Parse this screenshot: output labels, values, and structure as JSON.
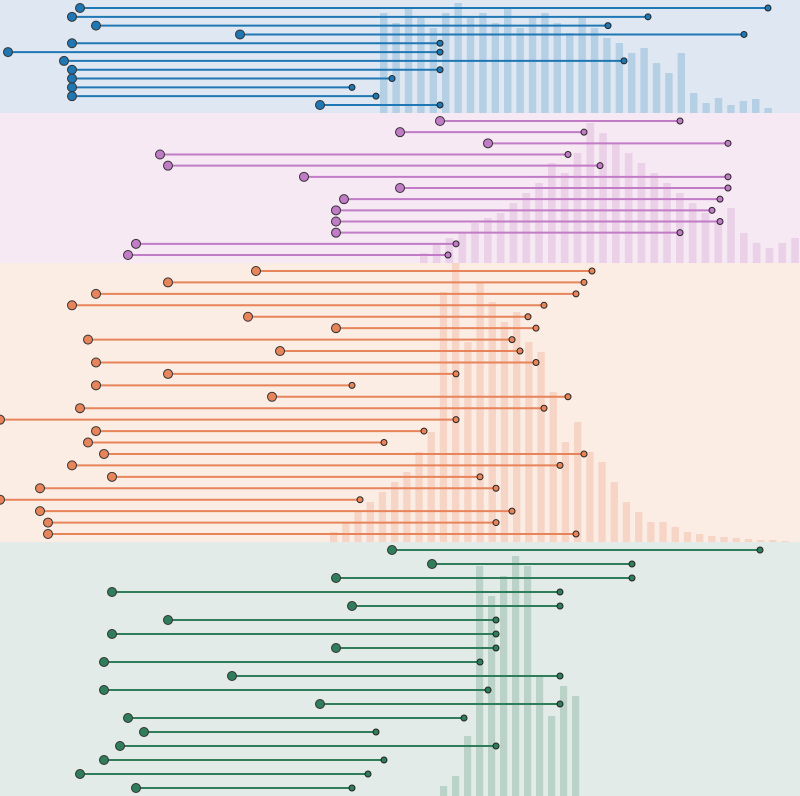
{
  "chart_data": {
    "type": "lineage",
    "xlim": [
      0,
      100
    ],
    "panels": [
      {
        "color": "#1f77b4",
        "background": "#dfe8f2",
        "bars": [
          100,
          90,
          105,
          95,
          85,
          100,
          110,
          95,
          100,
          90,
          105,
          85,
          95,
          100,
          90,
          80,
          95,
          85,
          75,
          70,
          60,
          65,
          50,
          40,
          60,
          20,
          10,
          15,
          8,
          12,
          14,
          5
        ],
        "lineages": [
          [
            10,
            96
          ],
          [
            9,
            81
          ],
          [
            12,
            76
          ],
          [
            30,
            93
          ],
          [
            9,
            55
          ],
          [
            1,
            55
          ],
          [
            8,
            78
          ],
          [
            9,
            55
          ],
          [
            9,
            49
          ],
          [
            9,
            44
          ],
          [
            9,
            47
          ],
          [
            40,
            55
          ]
        ]
      },
      {
        "color": "#c27bc6",
        "background": "#f6e9f3",
        "bars": [
          10,
          20,
          25,
          30,
          40,
          45,
          50,
          60,
          70,
          80,
          100,
          90,
          110,
          140,
          130,
          120,
          110,
          100,
          90,
          80,
          70,
          60,
          50,
          40,
          55,
          30,
          20,
          15,
          20,
          25
        ],
        "lineages": [
          [
            55,
            85
          ],
          [
            50,
            73
          ],
          [
            61,
            91
          ],
          [
            20,
            71
          ],
          [
            21,
            75
          ],
          [
            38,
            91
          ],
          [
            50,
            91
          ],
          [
            43,
            90
          ],
          [
            42,
            89
          ],
          [
            42,
            90
          ],
          [
            42,
            85
          ],
          [
            17,
            57
          ],
          [
            16,
            56
          ]
        ]
      },
      {
        "color": "#e8845a",
        "background": "#fbece4",
        "bars": [
          10,
          20,
          30,
          40,
          50,
          60,
          70,
          90,
          110,
          250,
          280,
          200,
          260,
          240,
          220,
          230,
          200,
          190,
          150,
          100,
          120,
          90,
          80,
          60,
          40,
          30,
          20,
          20,
          15,
          10,
          8,
          6,
          5,
          4,
          3,
          2,
          2,
          1
        ],
        "lineages": [
          [
            32,
            74
          ],
          [
            21,
            73
          ],
          [
            12,
            72
          ],
          [
            9,
            68
          ],
          [
            31,
            66
          ],
          [
            42,
            67
          ],
          [
            11,
            64
          ],
          [
            35,
            65
          ],
          [
            12,
            67
          ],
          [
            21,
            57
          ],
          [
            12,
            44
          ],
          [
            34,
            71
          ],
          [
            10,
            68
          ],
          [
            0,
            57
          ],
          [
            12,
            53
          ],
          [
            11,
            48
          ],
          [
            13,
            73
          ],
          [
            9,
            70
          ],
          [
            14,
            60
          ],
          [
            5,
            62
          ],
          [
            0,
            45
          ],
          [
            5,
            64
          ],
          [
            6,
            62
          ],
          [
            6,
            72
          ]
        ]
      },
      {
        "color": "#2f7d5a",
        "background": "#e2ebe7",
        "bars": [
          10,
          20,
          60,
          230,
          200,
          220,
          240,
          230,
          120,
          80,
          110,
          100
        ],
        "lineages": [
          [
            49,
            95
          ],
          [
            54,
            79
          ],
          [
            42,
            79
          ],
          [
            14,
            70
          ],
          [
            44,
            70
          ],
          [
            21,
            62
          ],
          [
            14,
            62
          ],
          [
            42,
            62
          ],
          [
            13,
            60
          ],
          [
            29,
            70
          ],
          [
            13,
            61
          ],
          [
            40,
            70
          ],
          [
            16,
            58
          ],
          [
            18,
            47
          ],
          [
            15,
            62
          ],
          [
            13,
            48
          ],
          [
            10,
            46
          ],
          [
            17,
            44
          ]
        ]
      }
    ]
  }
}
